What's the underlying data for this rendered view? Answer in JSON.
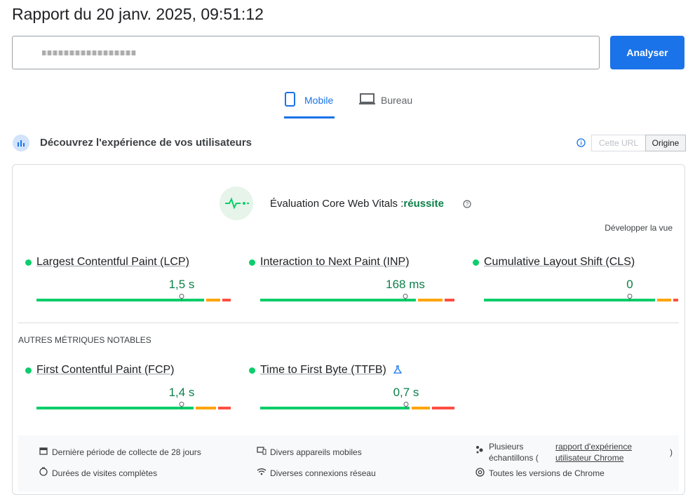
{
  "header": {
    "title": "Rapport du 20 janv. 2025, 09:51:12",
    "button": "Analyser"
  },
  "tabs": [
    "Mobile",
    "Bureau"
  ],
  "section": {
    "title": "Découvrez l'expérience de vos utilisateurs",
    "toggles": [
      "Cette URL",
      "Origine"
    ]
  },
  "assessment": {
    "label": "Évaluation Core Web Vitals :",
    "result": "réussite",
    "expand": "Développer la vue"
  },
  "core_metrics": [
    {
      "name": "Largest Contentful Paint (LCP)",
      "value": "1,5 s"
    },
    {
      "name": "Interaction to Next Paint (INP)",
      "value": "168 ms"
    },
    {
      "name": "Cumulative Layout Shift (CLS)",
      "value": "0"
    }
  ],
  "other_title": "AUTRES MÉTRIQUES NOTABLES",
  "other_metrics": [
    {
      "name": "First Contentful Paint (FCP)",
      "value": "1,4 s"
    },
    {
      "name": "Time to First Byte (TTFB)",
      "value": "0,7 s"
    }
  ],
  "footer": {
    "period": "Dernière période de collecte de 28 jours",
    "devices": "Divers appareils mobiles",
    "samples": "Plusieurs échantillons (",
    "samples_link": "rapport d'expérience utilisateur Chrome",
    "samples_end": ")",
    "visits": "Durées de visites complètes",
    "network": "Diverses connexions réseau",
    "chrome": "Toutes les versions de Chrome"
  }
}
